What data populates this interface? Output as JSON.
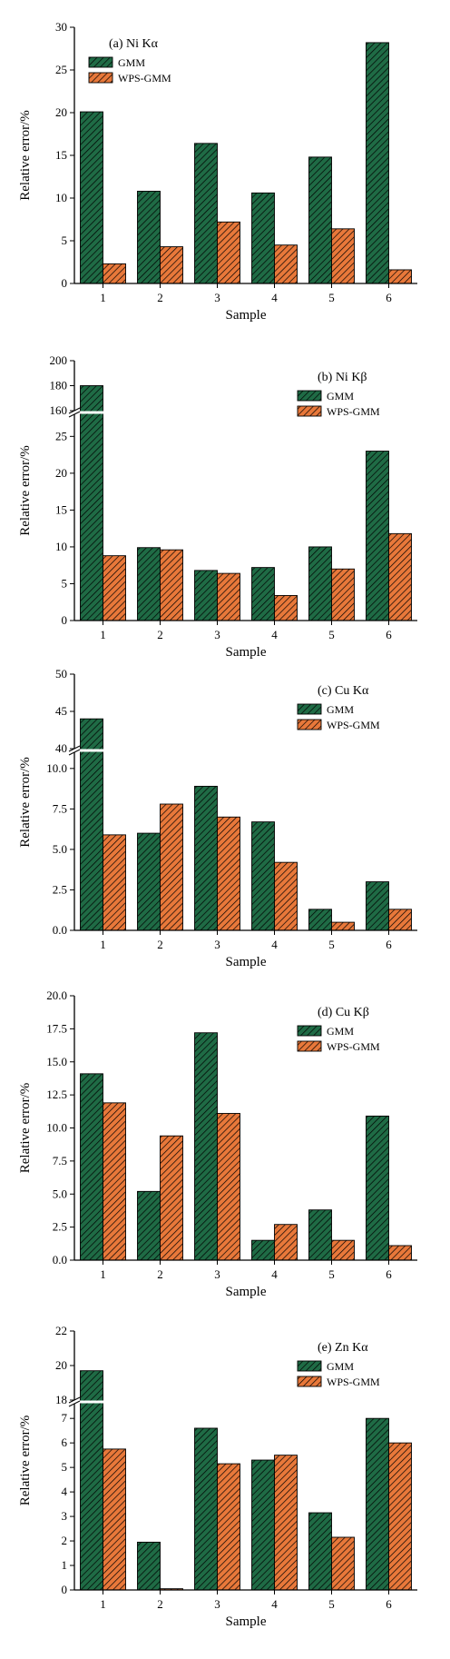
{
  "colors": {
    "gmm": "#1f6b45",
    "wps": "#e8783a"
  },
  "legend": {
    "gmm": "GMM",
    "wps": "WPS-GMM"
  },
  "chart_data": [
    {
      "type": "bar",
      "title": "(a) Ni Kα",
      "xlabel": "Sample",
      "ylabel": "Relative error/%",
      "categories": [
        "1",
        "2",
        "3",
        "4",
        "5",
        "6"
      ],
      "series": [
        {
          "name": "GMM",
          "values": [
            20.1,
            10.8,
            16.4,
            10.6,
            14.8,
            28.2
          ]
        },
        {
          "name": "WPS-GMM",
          "values": [
            2.3,
            4.3,
            7.2,
            4.5,
            6.4,
            1.6
          ]
        }
      ],
      "ylim": [
        0,
        30
      ],
      "yticks": [
        "0",
        "5",
        "10",
        "15",
        "20",
        "25",
        "30"
      ],
      "break": null,
      "legend_position": "top-left"
    },
    {
      "type": "bar",
      "title": "(b) Ni Kβ",
      "xlabel": "Sample",
      "ylabel": "Relative error/%",
      "categories": [
        "1",
        "2",
        "3",
        "4",
        "5",
        "6"
      ],
      "series": [
        {
          "name": "GMM",
          "values": [
            180,
            9.9,
            6.8,
            7.2,
            10.0,
            23.0
          ]
        },
        {
          "name": "WPS-GMM",
          "values": [
            8.8,
            9.6,
            6.4,
            3.4,
            7.0,
            11.8
          ]
        }
      ],
      "ylim": [
        0,
        200
      ],
      "break": [
        28,
        160
      ],
      "yticks_lower": [
        "0",
        "5",
        "10",
        "15",
        "20",
        "25"
      ],
      "yticks_upper": [
        "160",
        "180",
        "200"
      ],
      "legend_position": "top-right"
    },
    {
      "type": "bar",
      "title": "(c) Cu Kα",
      "xlabel": "Sample",
      "ylabel": "Relative error/%",
      "categories": [
        "1",
        "2",
        "3",
        "4",
        "5",
        "6"
      ],
      "series": [
        {
          "name": "GMM",
          "values": [
            44.0,
            6.0,
            8.9,
            6.7,
            1.3,
            3.0
          ]
        },
        {
          "name": "WPS-GMM",
          "values": [
            5.9,
            7.8,
            7.0,
            4.2,
            0.5,
            1.3
          ]
        }
      ],
      "ylim": [
        0,
        50
      ],
      "break": [
        11,
        40
      ],
      "yticks_lower": [
        "0.0",
        "2.5",
        "5.0",
        "7.5",
        "10.0"
      ],
      "yticks_upper": [
        "40",
        "45",
        "50"
      ],
      "legend_position": "top-right"
    },
    {
      "type": "bar",
      "title": "(d) Cu Kβ",
      "xlabel": "Sample",
      "ylabel": "Relative error/%",
      "categories": [
        "1",
        "2",
        "3",
        "4",
        "5",
        "6"
      ],
      "series": [
        {
          "name": "GMM",
          "values": [
            14.1,
            5.2,
            17.2,
            1.5,
            3.8,
            10.9
          ]
        },
        {
          "name": "WPS-GMM",
          "values": [
            11.9,
            9.4,
            11.1,
            2.7,
            1.5,
            1.1
          ]
        }
      ],
      "ylim": [
        0,
        20
      ],
      "yticks": [
        "0.0",
        "2.5",
        "5.0",
        "7.5",
        "10.0",
        "12.5",
        "15.0",
        "17.5",
        "20.0"
      ],
      "break": null,
      "legend_position": "top-right"
    },
    {
      "type": "bar",
      "title": "(e) Zn Kα",
      "xlabel": "Sample",
      "ylabel": "Relative error/%",
      "categories": [
        "1",
        "2",
        "3",
        "4",
        "5",
        "6"
      ],
      "series": [
        {
          "name": "GMM",
          "values": [
            19.7,
            1.95,
            6.6,
            5.3,
            3.15,
            7.0
          ]
        },
        {
          "name": "WPS-GMM",
          "values": [
            5.75,
            0.05,
            5.15,
            5.5,
            2.15,
            6.0
          ]
        }
      ],
      "ylim": [
        0,
        22
      ],
      "break": [
        7.6,
        18
      ],
      "yticks_lower": [
        "0",
        "1",
        "2",
        "3",
        "4",
        "5",
        "6",
        "7"
      ],
      "yticks_upper": [
        "18",
        "20",
        "22"
      ],
      "legend_position": "top-right"
    }
  ]
}
